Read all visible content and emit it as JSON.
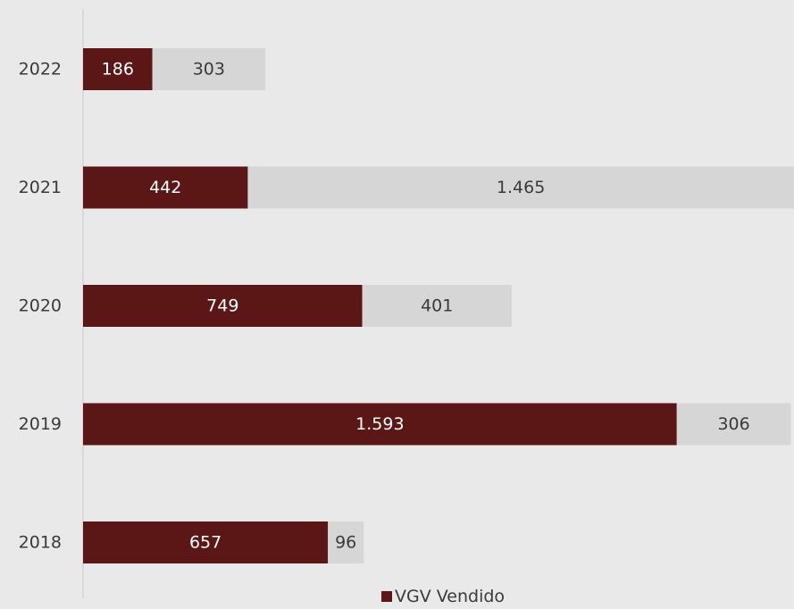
{
  "colors": {
    "background": "#e9e9e9",
    "sold": "#5b1616",
    "remaining": "#d6d6d7",
    "axis": "#c9c9c9",
    "sold_label": "#ffffff",
    "remaining_label": "#3a3a3a",
    "tick_label": "#3a3a3a"
  },
  "chart_data": {
    "type": "bar",
    "orientation": "horizontal",
    "stacked": true,
    "categories": [
      "2022",
      "2021",
      "2020",
      "2019",
      "2018"
    ],
    "series": [
      {
        "name": "VGV Vendido",
        "values": [
          186,
          442,
          749,
          1593,
          657
        ],
        "labels": [
          "186",
          "442",
          "749",
          "1.593",
          "657"
        ]
      },
      {
        "values": [
          303,
          1465,
          401,
          306,
          96
        ],
        "labels": [
          "303",
          "1.465",
          "401",
          "306",
          "96"
        ]
      }
    ],
    "xlim": [
      0,
      1899
    ],
    "grid": false,
    "legend_position": "bottom"
  },
  "legend": {
    "label": "VGV Vendido"
  }
}
